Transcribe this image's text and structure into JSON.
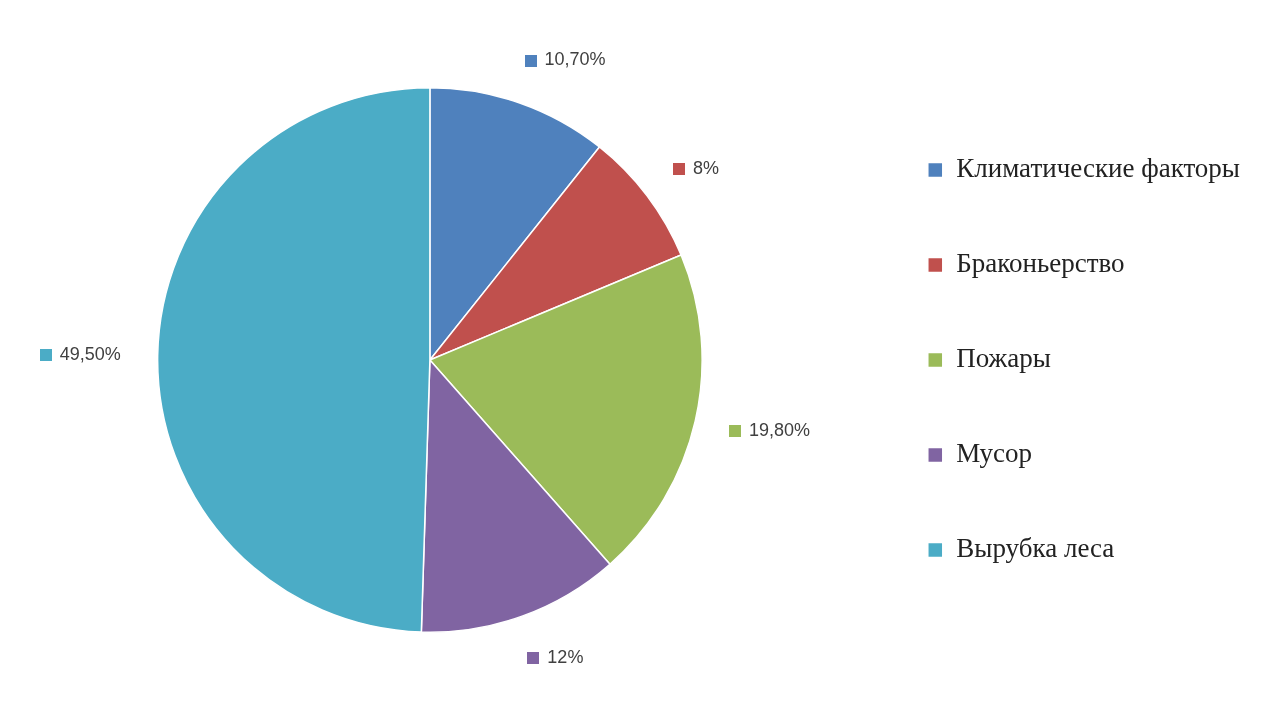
{
  "chart_data": {
    "type": "pie",
    "categories": [
      "Климатические факторы",
      "Браконьерство",
      "Пожары",
      "Мусор",
      "Вырубка леса"
    ],
    "values": [
      10.7,
      8,
      19.8,
      12,
      49.5
    ],
    "colors": [
      "#4f81bd",
      "#c0504d",
      "#9bbb59",
      "#8064a2",
      "#4bacc6"
    ],
    "value_labels": [
      "10,70%",
      "8%",
      "19,80%",
      "12%",
      "49,50%"
    ],
    "legend": "right"
  }
}
